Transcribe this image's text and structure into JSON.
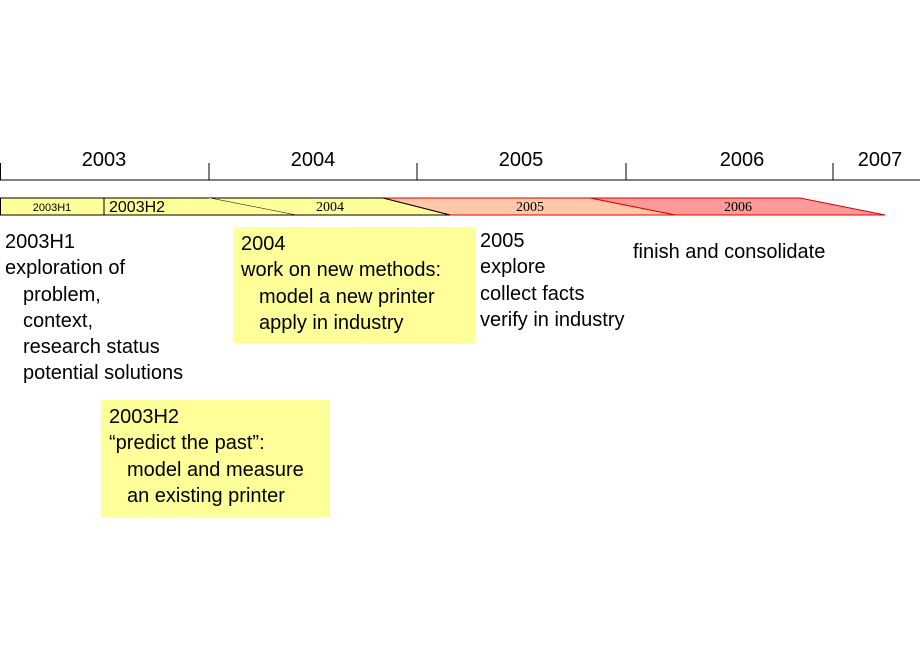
{
  "axis": {
    "years": [
      "2003",
      "2004",
      "2005",
      "2006",
      "2007"
    ]
  },
  "phases": [
    {
      "label": "2003H1"
    },
    {
      "label": "2003H2"
    },
    {
      "label": "2004"
    },
    {
      "label": "2005"
    },
    {
      "label": "2006"
    }
  ],
  "notes": [
    {
      "lines": [
        "2003H1",
        "exploration of",
        "problem,",
        "context,",
        "research status",
        "potential solutions"
      ]
    },
    {
      "lines": [
        "2004",
        "work on new methods:",
        "model a new printer",
        "apply in industry"
      ]
    },
    {
      "lines": [
        "2005",
        "explore",
        "collect facts",
        "verify in industry"
      ]
    },
    {
      "lines": [
        "finish and consolidate"
      ]
    },
    {
      "lines": [
        "2003H2",
        "“predict the past”:",
        "model and measure",
        "an existing printer"
      ]
    }
  ]
}
